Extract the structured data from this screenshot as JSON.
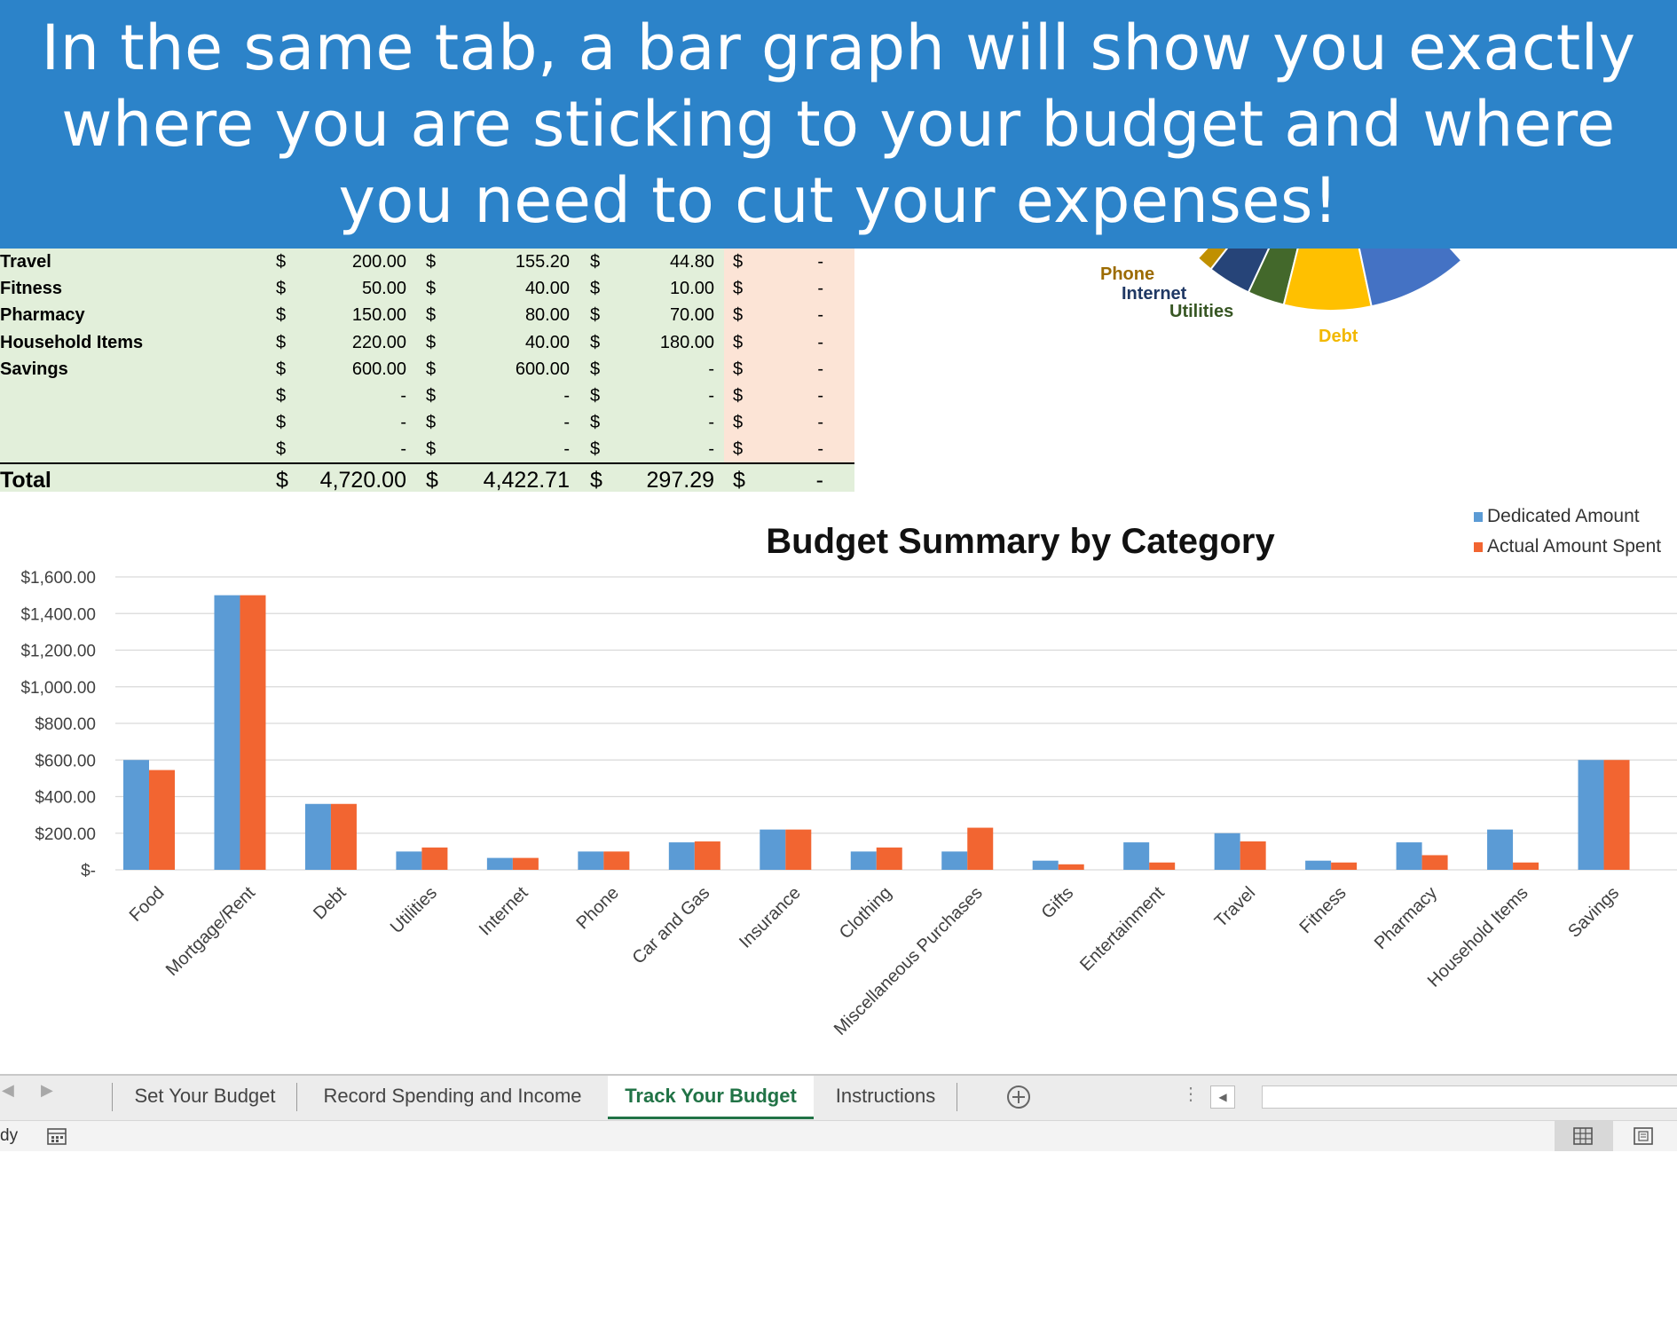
{
  "banner": {
    "lines": [
      "In the same tab, a bar graph will show you exactly",
      "where you are sticking to your budget and where",
      "you need to cut your expenses!"
    ]
  },
  "sheet": {
    "currency": "$",
    "rows": [
      {
        "label": "Travel",
        "budget": "200.00",
        "actual": "155.20",
        "diff": "44.80",
        "over": "-"
      },
      {
        "label": "Fitness",
        "budget": "50.00",
        "actual": "40.00",
        "diff": "10.00",
        "over": "-"
      },
      {
        "label": "Pharmacy",
        "budget": "150.00",
        "actual": "80.00",
        "diff": "70.00",
        "over": "-"
      },
      {
        "label": "Household Items",
        "budget": "220.00",
        "actual": "40.00",
        "diff": "180.00",
        "over": "-"
      },
      {
        "label": "Savings",
        "budget": "600.00",
        "actual": "600.00",
        "diff": "-",
        "over": "-"
      },
      {
        "label": "",
        "budget": "-",
        "actual": "-",
        "diff": "-",
        "over": "-"
      },
      {
        "label": "",
        "budget": "-",
        "actual": "-",
        "diff": "-",
        "over": "-"
      },
      {
        "label": "",
        "budget": "-",
        "actual": "-",
        "diff": "-",
        "over": "-"
      }
    ],
    "total": {
      "label": "Total",
      "budget": "4,720.00",
      "actual": "4,422.71",
      "diff": "297.29",
      "over": "-"
    }
  },
  "pie": {
    "labels": [
      {
        "text": "Phone",
        "color": "#9c6b00"
      },
      {
        "text": "Internet",
        "color": "#1f3864"
      },
      {
        "text": "Utilities",
        "color": "#375623"
      },
      {
        "text": "Debt",
        "color": "#f2b800"
      }
    ],
    "slice_colors": [
      "#c09000",
      "#264478",
      "#43682b",
      "#ffc000",
      "#4472c4"
    ]
  },
  "chart_data": {
    "type": "bar",
    "title": "Budget Summary by Category",
    "categories": [
      "Food",
      "Mortgage/Rent",
      "Debt",
      "Utilities",
      "Internet",
      "Phone",
      "Car and Gas",
      "Insurance",
      "Clothing",
      "Miscellaneous Purchases",
      "Gifts",
      "Entertainment",
      "Travel",
      "Fitness",
      "Pharmacy",
      "Household Items",
      "Savings"
    ],
    "series": [
      {
        "name": "Dedicated Amount",
        "color": "#5b9bd5",
        "values": [
          600,
          1500,
          360,
          100,
          65,
          100,
          150,
          220,
          100,
          100,
          50,
          150,
          200,
          50,
          150,
          220,
          600
        ]
      },
      {
        "name": "Actual Amount Spent",
        "color": "#f26531",
        "values": [
          545,
          1500,
          360,
          122,
          65,
          100,
          155,
          220,
          122,
          230,
          30,
          40,
          155.2,
          40,
          80,
          40,
          600
        ]
      }
    ],
    "ylim": [
      0,
      1600
    ],
    "yticks": [
      0,
      200,
      400,
      600,
      800,
      1000,
      1200,
      1400,
      1600
    ],
    "ytick_labels": [
      "$-",
      "$200.00",
      "$400.00",
      "$600.00",
      "$800.00",
      "$1,000.00",
      "$1,200.00",
      "$1,400.00",
      "$1,600.00"
    ],
    "grid": true,
    "legend": "top-right"
  },
  "tabs": [
    "Set Your Budget",
    "Record Spending and Income",
    "Track Your Budget",
    "Instructions"
  ],
  "active_tab": "Track Your Budget",
  "status": {
    "text": "dy"
  }
}
